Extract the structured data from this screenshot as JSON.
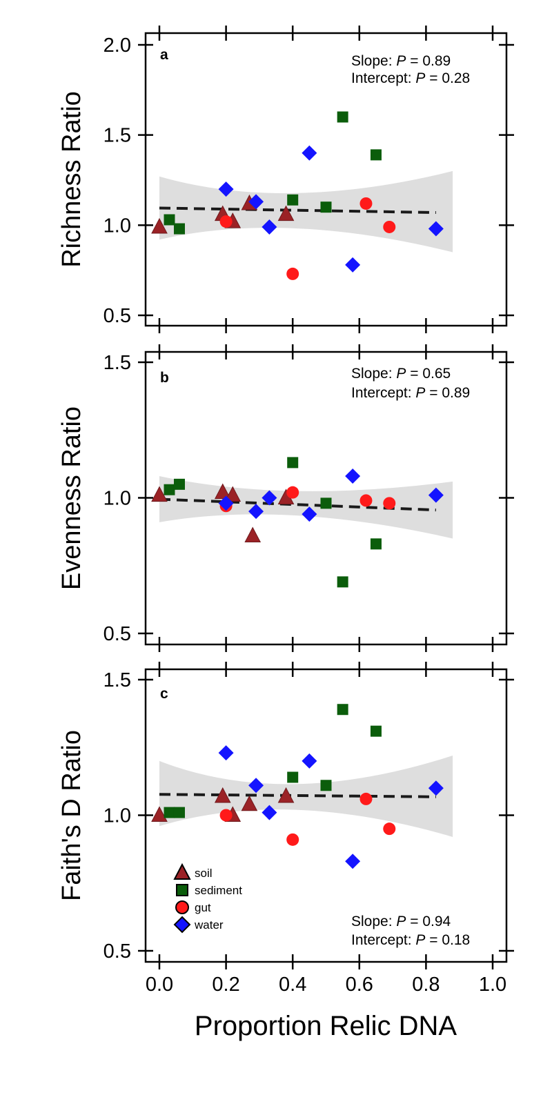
{
  "figure": {
    "xlabel": "Proportion Relic DNA",
    "x_ticks": [
      "0.0",
      "0.2",
      "0.4",
      "0.6",
      "0.8",
      "1.0"
    ]
  },
  "legend": {
    "placement": "bottom-left of panel c",
    "entries": [
      {
        "label": "soil",
        "marker": "triangle",
        "color": "#9b2226"
      },
      {
        "label": "sediment",
        "marker": "square",
        "color": "#0b5d0b"
      },
      {
        "label": "gut",
        "marker": "circle",
        "color": "#ff1a1a"
      },
      {
        "label": "water",
        "marker": "diamond",
        "color": "#1414ff"
      }
    ]
  },
  "colors": {
    "soil": "#9b2226",
    "sediment": "#0b5d0b",
    "gut": "#ff1a1a",
    "water": "#1414ff",
    "ci_band": "#dedede",
    "fit_line": "#1a1a1a"
  },
  "chart_data": [
    {
      "type": "scatter",
      "panel_label": "a",
      "ylabel": "Richness Ratio",
      "xlim": [
        0,
        1
      ],
      "ylim": [
        0.5,
        2.0
      ],
      "y_ticks": [
        "0.5",
        "1.0",
        "1.5",
        "2.0"
      ],
      "stats": {
        "slope_prefix": "Slope: ",
        "slope_p": " = 0.89",
        "intercept_prefix": "Intercept: ",
        "intercept_p": " = 0.28"
      },
      "stats_position": "top-right",
      "fit": {
        "x": [
          0,
          0.83
        ],
        "y": [
          1.095,
          1.07
        ]
      },
      "ci": {
        "x": [
          0,
          0.88
        ],
        "upper": [
          1.27,
          1.3
        ],
        "lower": [
          0.92,
          0.85
        ],
        "mid_upper": [
          1.17,
          1.2
        ],
        "mid_lower": [
          1.0,
          0.98
        ]
      },
      "series": [
        {
          "name": "soil",
          "x": [
            0.0,
            0.19,
            0.22,
            0.27,
            0.38
          ],
          "y": [
            0.99,
            1.06,
            1.02,
            1.12,
            1.06
          ]
        },
        {
          "name": "sediment",
          "x": [
            0.03,
            0.06,
            0.4,
            0.5,
            0.55,
            0.65
          ],
          "y": [
            1.03,
            0.98,
            1.14,
            1.1,
            1.6,
            1.39
          ]
        },
        {
          "name": "gut",
          "x": [
            0.2,
            0.4,
            0.62,
            0.69
          ],
          "y": [
            1.02,
            0.73,
            1.12,
            0.99
          ]
        },
        {
          "name": "water",
          "x": [
            0.2,
            0.29,
            0.33,
            0.45,
            0.58,
            0.83
          ],
          "y": [
            1.2,
            1.13,
            0.99,
            1.4,
            0.78,
            0.98
          ]
        }
      ]
    },
    {
      "type": "scatter",
      "panel_label": "b",
      "ylabel": "Evenness Ratio",
      "xlim": [
        0,
        1
      ],
      "ylim": [
        0.47,
        1.53
      ],
      "y_ticks": [
        "0.5",
        "1.0",
        "1.5"
      ],
      "stats": {
        "slope_prefix": "Slope: ",
        "slope_p": " = 0.65",
        "intercept_prefix": "Intercept: ",
        "intercept_p": " = 0.89"
      },
      "stats_position": "top-right",
      "fit": {
        "x": [
          0,
          0.83
        ],
        "y": [
          0.995,
          0.955
        ]
      },
      "ci": {
        "x": [
          0,
          0.88
        ],
        "upper": [
          1.08,
          1.06
        ],
        "lower": [
          0.91,
          0.85
        ],
        "mid_upper": [
          1.03,
          1.0
        ],
        "mid_lower": [
          0.95,
          0.93
        ]
      },
      "series": [
        {
          "name": "soil",
          "x": [
            0.0,
            0.19,
            0.22,
            0.28,
            0.38
          ],
          "y": [
            1.01,
            1.02,
            1.01,
            0.86,
            1.0
          ]
        },
        {
          "name": "sediment",
          "x": [
            0.03,
            0.06,
            0.4,
            0.5,
            0.55,
            0.65
          ],
          "y": [
            1.03,
            1.05,
            1.13,
            0.98,
            0.69,
            0.83
          ]
        },
        {
          "name": "gut",
          "x": [
            0.2,
            0.4,
            0.62,
            0.69
          ],
          "y": [
            0.97,
            1.02,
            0.99,
            0.98
          ]
        },
        {
          "name": "water",
          "x": [
            0.2,
            0.29,
            0.33,
            0.45,
            0.58,
            0.83
          ],
          "y": [
            0.98,
            0.95,
            1.0,
            0.94,
            1.08,
            1.01
          ]
        }
      ]
    },
    {
      "type": "scatter",
      "panel_label": "c",
      "ylabel": "Faith's D Ratio",
      "xlim": [
        0,
        1
      ],
      "ylim": [
        0.47,
        1.53
      ],
      "y_ticks": [
        "0.5",
        "1.0",
        "1.5"
      ],
      "stats": {
        "slope_prefix": "Slope: ",
        "slope_p": " = 0.94",
        "intercept_prefix": "Intercept: ",
        "intercept_p": " = 0.18"
      },
      "stats_position": "bottom-right",
      "fit": {
        "x": [
          0,
          0.83
        ],
        "y": [
          1.077,
          1.068
        ]
      },
      "ci": {
        "x": [
          0,
          0.88
        ],
        "upper": [
          1.2,
          1.22
        ],
        "lower": [
          0.96,
          0.92
        ],
        "mid_upper": [
          1.11,
          1.12
        ],
        "mid_lower": [
          1.03,
          1.02
        ]
      },
      "series": [
        {
          "name": "soil",
          "x": [
            0.0,
            0.19,
            0.22,
            0.27,
            0.38
          ],
          "y": [
            1.0,
            1.07,
            1.0,
            1.04,
            1.07
          ]
        },
        {
          "name": "sediment",
          "x": [
            0.03,
            0.06,
            0.4,
            0.5,
            0.55,
            0.65
          ],
          "y": [
            1.01,
            1.01,
            1.14,
            1.11,
            1.39,
            1.31
          ]
        },
        {
          "name": "gut",
          "x": [
            0.2,
            0.4,
            0.62,
            0.69
          ],
          "y": [
            1.0,
            0.91,
            1.06,
            0.95
          ]
        },
        {
          "name": "water",
          "x": [
            0.2,
            0.29,
            0.33,
            0.45,
            0.58,
            0.83
          ],
          "y": [
            1.23,
            1.11,
            1.01,
            1.2,
            0.83,
            1.1
          ]
        }
      ]
    }
  ]
}
